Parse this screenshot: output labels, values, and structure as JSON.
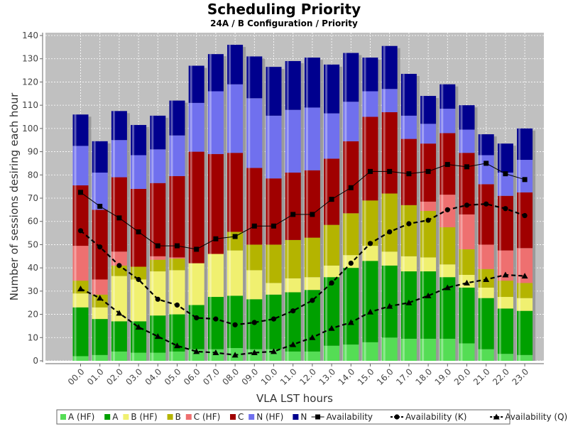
{
  "chart_data": {
    "type": "bar",
    "title": "Scheduling Priority",
    "subtitle": "24A / B Configuration /  Priority",
    "xlabel": "VLA LST hours",
    "ylabel": "Number of sessions desiring each hour",
    "ylim": [
      0,
      140
    ],
    "yticks": [
      0,
      10,
      20,
      30,
      40,
      50,
      60,
      70,
      80,
      90,
      100,
      110,
      120,
      130,
      140
    ],
    "grid": true,
    "legend_position": "bottom",
    "categories": [
      "00.0",
      "01.0",
      "02.0",
      "03.0",
      "04.0",
      "05.0",
      "06.0",
      "07.0",
      "08.0",
      "09.0",
      "10.0",
      "11.0",
      "12.0",
      "13.0",
      "14.0",
      "15.0",
      "16.0",
      "17.0",
      "18.0",
      "19.0",
      "20.0",
      "21.0",
      "22.0",
      "23.0"
    ],
    "stacked_series": [
      {
        "name": "A (HF)",
        "color": "#55dd55",
        "values": [
          2,
          2.5,
          4,
          3.5,
          3.5,
          4,
          5,
          5,
          5.5,
          5,
          5,
          4,
          4,
          6.5,
          7,
          8,
          10,
          9.5,
          9.5,
          9.5,
          7.5,
          5,
          3,
          2.5
        ]
      },
      {
        "name": "A",
        "color": "#00a000",
        "values": [
          21,
          15.5,
          13,
          13.5,
          16,
          16,
          19,
          22.5,
          22.5,
          21.5,
          23.5,
          25.5,
          26.5,
          29.5,
          33,
          35,
          31,
          29,
          29,
          26.5,
          24,
          22,
          19.5,
          19
        ]
      },
      {
        "name": "B (HF)",
        "color": "#f0f070",
        "values": [
          6,
          5,
          19.5,
          18,
          19,
          19,
          18,
          18.5,
          19.5,
          12.5,
          5,
          6,
          5.5,
          5,
          5.5,
          6.5,
          6,
          6.5,
          6,
          5.5,
          5.5,
          4.5,
          5,
          5.5
        ]
      },
      {
        "name": "B",
        "color": "#b4b400",
        "values": [
          5.5,
          5.5,
          4.5,
          5.5,
          5,
          5,
          0,
          0,
          8,
          11,
          16.5,
          16.5,
          17,
          17.5,
          18,
          19.5,
          25,
          22,
          20,
          16,
          11,
          8,
          7,
          6.5
        ]
      },
      {
        "name": "C (HF)",
        "color": "#ee7070",
        "values": [
          15,
          6.5,
          6,
          0,
          1.5,
          0.5,
          0,
          0,
          0,
          0,
          0,
          0,
          0,
          0,
          0,
          0,
          0,
          0,
          4,
          14,
          15,
          10.5,
          13,
          15
        ]
      },
      {
        "name": "C",
        "color": "#a00000",
        "values": [
          26,
          30,
          32,
          33.5,
          31.5,
          35,
          48,
          43,
          34,
          33,
          28.5,
          29,
          29,
          28.5,
          31,
          36,
          35,
          28.5,
          25,
          26.5,
          26.5,
          26,
          23.5,
          24
        ]
      },
      {
        "name": "N (HF)",
        "color": "#7070ee",
        "values": [
          17,
          16,
          16,
          14.5,
          14.5,
          17.5,
          21,
          27,
          29.5,
          30,
          27,
          27,
          27,
          19.5,
          17,
          11,
          10,
          10,
          8.5,
          10.5,
          10,
          12.5,
          10,
          14
        ]
      },
      {
        "name": "N",
        "color": "#00008e",
        "values": [
          13.5,
          13.5,
          12.5,
          13,
          14.5,
          15,
          16,
          16,
          17,
          18,
          21,
          21,
          21.5,
          21,
          21,
          14.5,
          18.5,
          18,
          12,
          10.5,
          10.5,
          9,
          12.5,
          13.5
        ]
      }
    ],
    "line_series": [
      {
        "name": "Availability",
        "style": "solid",
        "marker": "square",
        "values": [
          72.5,
          66.5,
          61.5,
          55.5,
          49.5,
          49.5,
          48,
          52.5,
          53.5,
          58,
          58,
          63,
          63,
          69.5,
          74.5,
          81.5,
          81.5,
          80.5,
          81.5,
          84.5,
          83.5,
          85,
          80.5,
          78
        ]
      },
      {
        "name": "Availability (K)",
        "style": "dashed",
        "marker": "circle",
        "values": [
          56,
          49,
          41,
          35,
          26.5,
          24,
          18.5,
          18,
          15.5,
          16.5,
          18,
          21.5,
          26,
          33.5,
          42,
          50.5,
          55.5,
          59,
          60.5,
          65,
          67,
          67.5,
          65.5,
          62.5
        ]
      },
      {
        "name": "Availability (Q)",
        "style": "dashed",
        "marker": "triangle",
        "values": [
          31,
          27,
          20.5,
          14.5,
          10.5,
          6.5,
          4,
          3.5,
          2.5,
          3.5,
          4,
          7,
          10,
          14,
          16.5,
          21,
          23.5,
          25,
          28,
          31.5,
          33.5,
          35,
          37,
          36.5
        ]
      }
    ]
  }
}
